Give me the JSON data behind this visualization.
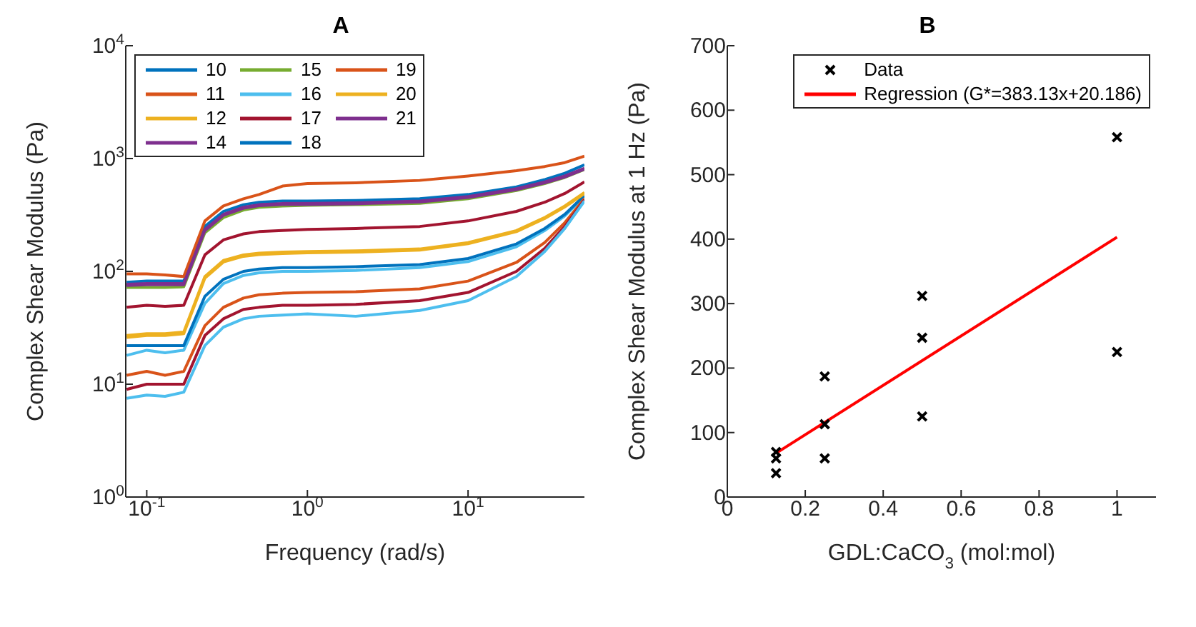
{
  "chart_data": [
    {
      "type": "line",
      "title": "A",
      "xlabel": "Frequency (rad/s)",
      "ylabel": "Complex Shear Modulus (Pa)",
      "log": "xy",
      "grid": false,
      "legend": "top left",
      "marker": "none",
      "line_style": "solid",
      "x": [
        0.075,
        0.1,
        0.13,
        0.17,
        0.23,
        0.3,
        0.4,
        0.5,
        0.7,
        1,
        2,
        5,
        10,
        20,
        30,
        40,
        53
      ],
      "xlim": [
        0.074,
        53
      ],
      "xticks": [
        {
          "value": 0.1,
          "label": "10$^{-1}$"
        },
        {
          "value": 1,
          "label": "10$^{0}$"
        },
        {
          "value": 10,
          "label": "10$^{1}$"
        }
      ],
      "ylim": [
        1,
        10000
      ],
      "yticks": [
        {
          "value": 1,
          "label": "10$^{0}$"
        },
        {
          "value": 10,
          "label": "10$^{1}$"
        },
        {
          "value": 100,
          "label": "10$^{2}$"
        },
        {
          "value": 1000,
          "label": "10$^{3}$"
        },
        {
          "value": 10000,
          "label": "10$^{4}$"
        }
      ],
      "series": [
        {
          "name": "10",
          "color": "#0072bd",
          "values": [
            80,
            82,
            82,
            82,
            250,
            340,
            390,
            410,
            420,
            420,
            425,
            440,
            480,
            560,
            650,
            740,
            880
          ]
        },
        {
          "name": "11",
          "color": "#d95319",
          "values": [
            95,
            95,
            93,
            90,
            280,
            380,
            440,
            480,
            570,
            600,
            610,
            640,
            700,
            780,
            850,
            920,
            1050
          ]
        },
        {
          "name": "12",
          "color": "#edb120",
          "values": [
            27,
            28,
            28,
            29,
            90,
            125,
            140,
            145,
            148,
            150,
            152,
            158,
            180,
            230,
            300,
            380,
            500
          ]
        },
        {
          "name": "14",
          "color": "#7e2f8e",
          "values": [
            77,
            78,
            78,
            78,
            235,
            320,
            370,
            390,
            400,
            400,
            405,
            420,
            460,
            540,
            620,
            700,
            820
          ]
        },
        {
          "name": "15",
          "color": "#77ac30",
          "values": [
            72,
            72,
            72,
            73,
            220,
            300,
            350,
            370,
            380,
            385,
            390,
            400,
            440,
            520,
            600,
            680,
            800
          ]
        },
        {
          "name": "16",
          "color": "#4dbeee",
          "values": [
            18,
            20,
            19,
            20,
            52,
            78,
            92,
            97,
            100,
            100,
            102,
            108,
            122,
            165,
            230,
            310,
            460
          ]
        },
        {
          "name": "17",
          "color": "#a2142f",
          "values": [
            48,
            50,
            49,
            50,
            140,
            190,
            215,
            225,
            230,
            235,
            240,
            250,
            280,
            340,
            410,
            490,
            620
          ]
        },
        {
          "name": "18",
          "color": "#0072bd",
          "values": [
            22,
            22,
            22,
            22,
            60,
            85,
            100,
            105,
            108,
            108,
            110,
            115,
            130,
            175,
            240,
            320,
            470
          ]
        },
        {
          "name": "19",
          "color": "#d95319",
          "values": [
            12,
            13,
            12,
            13,
            33,
            48,
            58,
            62,
            64,
            65,
            66,
            70,
            82,
            120,
            180,
            270,
            440
          ]
        },
        {
          "name": "20",
          "color": "#edb120",
          "values": [
            26,
            27,
            27,
            28,
            87,
            121,
            136,
            141,
            144,
            146,
            148,
            154,
            176,
            225,
            294,
            372,
            490
          ]
        },
        {
          "name": "21",
          "color": "#7e2f8e",
          "values": [
            75,
            76,
            76,
            76,
            230,
            314,
            363,
            382,
            392,
            392,
            397,
            412,
            452,
            530,
            608,
            686,
            805
          ]
        },
        {
          "color": "#a2142f",
          "values": [
            9,
            10,
            10,
            10,
            27,
            38,
            46,
            48,
            50,
            50,
            51,
            55,
            65,
            100,
            160,
            250,
            430
          ]
        },
        {
          "color": "#4dbeee",
          "values": [
            7.5,
            8,
            7.8,
            8.5,
            22,
            32,
            38,
            40,
            41,
            42,
            40,
            45,
            55,
            90,
            150,
            240,
            420
          ]
        }
      ]
    },
    {
      "type": "scatter",
      "title": "B",
      "xlabel": "GDL:CaCO$_{3}$ (mol:mol)",
      "ylabel": "Complex Shear Modulus at 1 Hz (Pa)",
      "grid": false,
      "legend": "top right",
      "xlim": [
        0,
        1.1
      ],
      "xticks": [
        0,
        0.2,
        0.4,
        0.6,
        0.8,
        1
      ],
      "ylim": [
        0,
        700
      ],
      "yticks": [
        0,
        100,
        200,
        300,
        400,
        500,
        600,
        700
      ],
      "series": [
        {
          "name": "Data",
          "type": "scatter",
          "color": "#000000",
          "marker": "cross",
          "x": [
            0.125,
            0.125,
            0.125,
            0.25,
            0.25,
            0.25,
            0.5,
            0.5,
            0.5,
            1,
            1
          ],
          "values": [
            70,
            60,
            37,
            187,
            113,
            60,
            312,
            247,
            125,
            558,
            225
          ]
        },
        {
          "name": "Regression (G*=383.13x+20.186)",
          "type": "line",
          "color": "#ff0000",
          "marker": "none",
          "line_style": "solid",
          "x": [
            0.125,
            1
          ],
          "values": [
            68,
            403
          ]
        }
      ]
    }
  ]
}
